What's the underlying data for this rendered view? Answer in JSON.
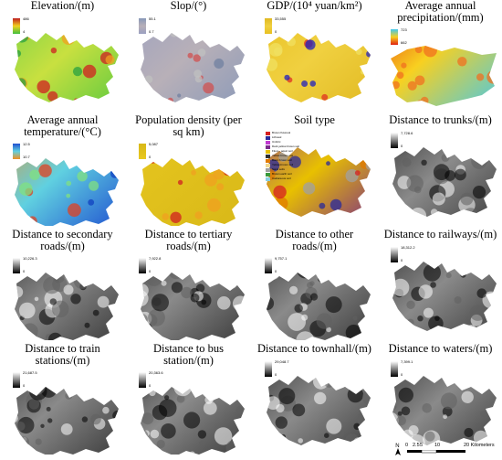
{
  "panels": [
    {
      "title": "Elevation/(m)",
      "max": "486",
      "min": "4",
      "style": "elev"
    },
    {
      "title": "Slop/(°)",
      "max": "55.1",
      "min": "0.7",
      "style": "slope"
    },
    {
      "title": "GDP/(10⁴ yuan/km²)",
      "max": "33,555",
      "min": "0",
      "style": "gdp"
    },
    {
      "title": "Average annual precipitation/(mm)",
      "max": "723",
      "min": "662",
      "style": "precip"
    },
    {
      "title": "Average annual temperature/(°C)",
      "max": "12.5",
      "min": "10.7",
      "style": "temp"
    },
    {
      "title": "Population density (per sq km)",
      "max": "5,087",
      "min": "0",
      "style": "pop"
    },
    {
      "title": "Soil type",
      "max": "",
      "min": "",
      "style": "soil"
    },
    {
      "title": "Distance to trunks/(m)",
      "max": "7,728.6",
      "min": "0",
      "style": "dist"
    },
    {
      "title": "Distance to secondary roads/(m)",
      "max": "10,226.3",
      "min": "0",
      "style": "dist"
    },
    {
      "title": "Distance to tertiary roads/(m)",
      "max": "7,922.8",
      "min": "0",
      "style": "dist"
    },
    {
      "title": "Distance to other roads/(m)",
      "max": "9,757.1",
      "min": "0",
      "style": "dist"
    },
    {
      "title": "Distance to railways/(m)",
      "max": "18,312.2",
      "min": "0",
      "style": "dist"
    },
    {
      "title": "Distance to train stations/(m)",
      "max": "21,687.5",
      "min": "0",
      "style": "dist"
    },
    {
      "title": "Distance to bus station/(m)",
      "max": "20,363.6",
      "min": "0",
      "style": "dist"
    },
    {
      "title": "Distance to townhall/(m)",
      "max": "29,048.7",
      "min": "0",
      "style": "dist"
    },
    {
      "title": "Distance to waters/(m)",
      "max": "7,399.1",
      "min": "0",
      "style": "dist"
    }
  ],
  "soil_legend": [
    {
      "label": "Brown fluviosol",
      "color": "#d62020"
    },
    {
      "label": "Lithosol",
      "color": "#2a2a9a"
    },
    {
      "label": "Umbric",
      "color": "#c03ad0"
    },
    {
      "label": "Dark yellow brown soil",
      "color": "#7a2a8a"
    },
    {
      "label": "Fluvo - aquic soil",
      "color": "#e8c000"
    },
    {
      "label": "Yellow brown soil",
      "color": "#303030"
    },
    {
      "label": "Basic brown soil",
      "color": "#e07a00"
    },
    {
      "label": "Yellow-brown soil",
      "color": "#f0d890"
    },
    {
      "label": "Sand soils",
      "color": "#a0a0a0"
    },
    {
      "label": "Brown earth soil",
      "color": "#3a9a3a"
    },
    {
      "label": "Calcareous soil",
      "color": "#8ad0e0"
    }
  ],
  "north_label": "N",
  "scale": {
    "ticks": [
      "0",
      "2.5",
      "5",
      "10"
    ],
    "end_label": "20 Kilometers"
  }
}
